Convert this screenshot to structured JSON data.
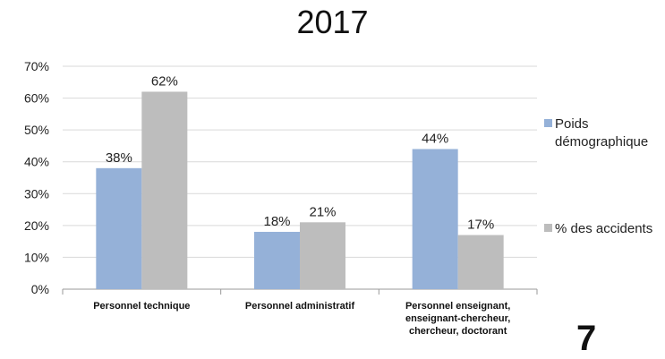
{
  "page_number": "7",
  "chart_data": {
    "type": "bar",
    "title": "2017",
    "xlabel": "",
    "ylabel": "",
    "ylim": [
      0,
      70
    ],
    "yticks": [
      0,
      10,
      20,
      30,
      40,
      50,
      60,
      70
    ],
    "ytick_labels": [
      "0%",
      "10%",
      "20%",
      "30%",
      "40%",
      "50%",
      "60%",
      "70%"
    ],
    "grid": true,
    "legend_position": "right",
    "categories": [
      [
        "Personnel technique"
      ],
      [
        "Personnel administratif"
      ],
      [
        "Personnel enseignant,",
        "enseignant-chercheur,",
        "chercheur, doctorant"
      ]
    ],
    "series": [
      {
        "name": "Poids démographique",
        "legend_lines": [
          "Poids",
          "démographique"
        ],
        "color": "#95b1d8",
        "values": [
          38,
          18,
          44
        ],
        "labels": [
          "38%",
          "18%",
          "44%"
        ]
      },
      {
        "name": "% des accidents",
        "legend_lines": [
          "% des accidents"
        ],
        "color": "#bdbdbd",
        "values": [
          62,
          21,
          17
        ],
        "labels": [
          "62%",
          "21%",
          "17%"
        ]
      }
    ]
  }
}
